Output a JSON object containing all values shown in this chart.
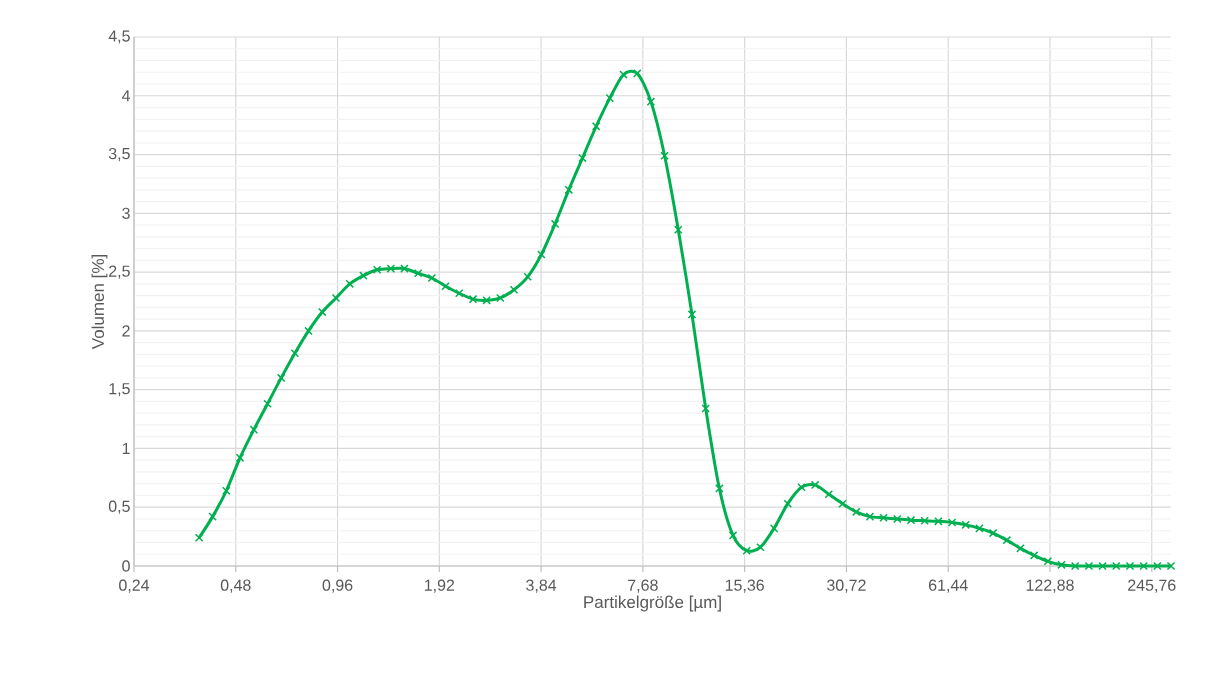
{
  "chart_data": {
    "type": "line",
    "xlabel": "Partikelgröße [µm]",
    "ylabel": "Volumen [%]",
    "x": [
      0.374,
      0.41,
      0.45,
      0.494,
      0.543,
      0.596,
      0.654,
      0.718,
      0.788,
      0.865,
      0.95,
      1.043,
      1.145,
      1.257,
      1.38,
      1.514,
      1.662,
      1.825,
      2.003,
      2.199,
      2.414,
      2.65,
      2.909,
      3.193,
      3.505,
      3.848,
      4.224,
      4.636,
      5.089,
      5.587,
      6.133,
      6.732,
      7.39,
      8.112,
      8.904,
      9.774,
      10.73,
      11.78,
      12.93,
      14.19,
      15.58,
      17.1,
      18.77,
      20.6,
      22.62,
      24.83,
      27.25,
      29.92,
      32.84,
      36.05,
      39.57,
      43.44,
      47.68,
      52.34,
      57.46,
      63.07,
      69.23,
      76.0,
      83.42,
      91.57,
      100.5,
      110.3,
      121.1,
      132.9,
      145.9,
      160.2,
      175.8,
      193.0,
      211.9,
      232.6,
      255.3,
      280.2
    ],
    "series": [
      {
        "color": "#00b050",
        "values": [
          0.24,
          0.42,
          0.64,
          0.92,
          1.16,
          1.38,
          1.6,
          1.81,
          2.0,
          2.16,
          2.28,
          2.4,
          2.47,
          2.52,
          2.53,
          2.53,
          2.49,
          2.45,
          2.38,
          2.32,
          2.27,
          2.26,
          2.28,
          2.35,
          2.46,
          2.65,
          2.91,
          3.2,
          3.47,
          3.74,
          3.98,
          4.18,
          4.19,
          3.95,
          3.49,
          2.86,
          2.14,
          1.34,
          0.66,
          0.26,
          0.13,
          0.16,
          0.32,
          0.53,
          0.67,
          0.69,
          0.61,
          0.53,
          0.46,
          0.42,
          0.41,
          0.4,
          0.39,
          0.385,
          0.38,
          0.37,
          0.35,
          0.32,
          0.28,
          0.22,
          0.15,
          0.09,
          0.04,
          0.01,
          0,
          0,
          0,
          0,
          0,
          0,
          0,
          0
        ]
      }
    ],
    "log": "x",
    "xlim": [
      0.24,
      280.2
    ],
    "xticks": [
      {
        "value": 0.24,
        "label": "0,24"
      },
      {
        "value": 0.48,
        "label": "0,48"
      },
      {
        "value": 0.96,
        "label": "0,96"
      },
      {
        "value": 1.92,
        "label": "1,92"
      },
      {
        "value": 3.84,
        "label": "3,84"
      },
      {
        "value": 7.68,
        "label": "7,68"
      },
      {
        "value": 15.36,
        "label": "15,36"
      },
      {
        "value": 30.72,
        "label": "30,72"
      },
      {
        "value": 61.44,
        "label": "61,44"
      },
      {
        "value": 122.88,
        "label": "122,88"
      },
      {
        "value": 245.76,
        "label": "245,76"
      }
    ],
    "ylim": [
      0,
      4.5
    ],
    "yticks": [
      0,
      {
        "value": 0.1,
        "label": null
      },
      {
        "value": 0.2,
        "label": null
      },
      {
        "value": 0.3,
        "label": null
      },
      {
        "value": 0.4,
        "label": null
      },
      {
        "value": 0.5,
        "label": "0,5"
      },
      {
        "value": 0.6,
        "label": null
      },
      {
        "value": 0.7,
        "label": null
      },
      {
        "value": 0.8,
        "label": null
      },
      {
        "value": 0.9,
        "label": null
      },
      1,
      {
        "value": 1.1,
        "label": null
      },
      {
        "value": 1.2,
        "label": null
      },
      {
        "value": 1.3,
        "label": null
      },
      {
        "value": 1.4,
        "label": null
      },
      {
        "value": 1.5,
        "label": "1,5"
      },
      {
        "value": 1.6,
        "label": null
      },
      {
        "value": 1.7,
        "label": null
      },
      {
        "value": 1.8,
        "label": null
      },
      {
        "value": 1.9,
        "label": null
      },
      2,
      {
        "value": 2.1,
        "label": null
      },
      {
        "value": 2.2,
        "label": null
      },
      {
        "value": 2.3,
        "label": null
      },
      {
        "value": 2.4,
        "label": null
      },
      {
        "value": 2.5,
        "label": "2,5"
      },
      {
        "value": 2.6,
        "label": null
      },
      {
        "value": 2.7,
        "label": null
      },
      {
        "value": 2.8,
        "label": null
      },
      {
        "value": 2.9,
        "label": null
      },
      3,
      {
        "value": 3.1,
        "label": null
      },
      {
        "value": 3.2,
        "label": null
      },
      {
        "value": 3.3,
        "label": null
      },
      {
        "value": 3.4,
        "label": null
      },
      {
        "value": 3.5,
        "label": "3,5"
      },
      {
        "value": 3.6,
        "label": null
      },
      {
        "value": 3.7,
        "label": null
      },
      {
        "value": 3.8,
        "label": null
      },
      {
        "value": 3.9,
        "label": null
      },
      4,
      {
        "value": 4.1,
        "label": null
      },
      {
        "value": 4.2,
        "label": null
      },
      {
        "value": 4.3,
        "label": null
      },
      {
        "value": 4.4,
        "label": null
      },
      {
        "value": 4.5,
        "label": "4,5"
      }
    ],
    "grid": true,
    "legend": false,
    "marker": "cross",
    "line_style": "solid"
  }
}
